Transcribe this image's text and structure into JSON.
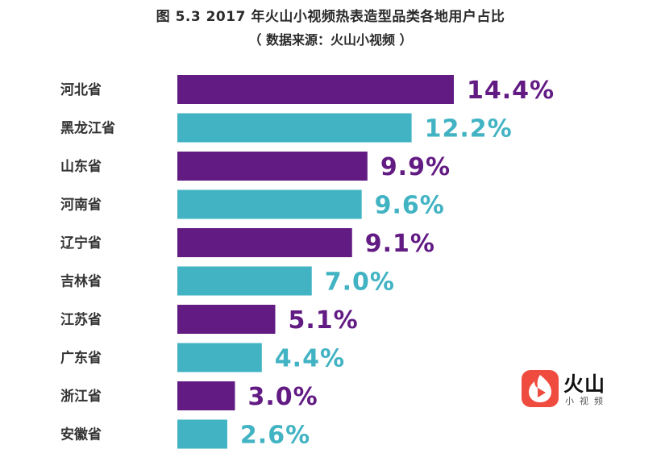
{
  "header": {
    "title": "图 5.3  2017 年火山小视频热表造型品类各地用户占比",
    "source": "（ 数据来源：火山小视频 ）"
  },
  "logo": {
    "name": "火山",
    "subtitle": "小视频",
    "icon": "huoshan-logo-icon",
    "color": "#ef4b3f"
  },
  "colors": {
    "purple": "#621b83",
    "teal": "#41b3c3"
  },
  "chart_data": {
    "type": "bar",
    "orientation": "horizontal",
    "categories": [
      "河北省",
      "黑龙江省",
      "山东省",
      "河南省",
      "辽宁省",
      "吉林省",
      "江苏省",
      "广东省",
      "浙江省",
      "安徽省"
    ],
    "values": [
      14.4,
      12.2,
      9.9,
      9.6,
      9.1,
      7.0,
      5.1,
      4.4,
      3.0,
      2.6
    ],
    "value_labels": [
      "14.4%",
      "12.2%",
      "9.9%",
      "9.6%",
      "9.1%",
      "7.0%",
      "5.1%",
      "4.4%",
      "3.0%",
      "2.6%"
    ],
    "bar_colors": [
      "#621b83",
      "#41b3c3",
      "#621b83",
      "#41b3c3",
      "#621b83",
      "#41b3c3",
      "#621b83",
      "#41b3c3",
      "#621b83",
      "#41b3c3"
    ],
    "unit": "%",
    "grid": false,
    "legend": "none"
  }
}
